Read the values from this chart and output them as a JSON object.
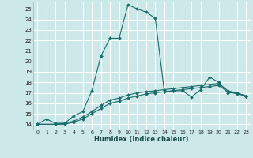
{
  "xlabel": "Humidex (Indice chaleur)",
  "bg_color": "#cce8e8",
  "grid_color": "#ffffff",
  "line_color": "#1a6b6b",
  "xlim": [
    -0.5,
    23.5
  ],
  "ylim": [
    13.5,
    25.7
  ],
  "xticks": [
    0,
    1,
    2,
    3,
    4,
    5,
    6,
    7,
    8,
    9,
    10,
    11,
    12,
    13,
    14,
    15,
    16,
    17,
    18,
    19,
    20,
    21,
    22,
    23
  ],
  "yticks": [
    14,
    15,
    16,
    17,
    18,
    19,
    20,
    21,
    22,
    23,
    24,
    25
  ],
  "series1_x": [
    0,
    1,
    2,
    3,
    4,
    5,
    6,
    7,
    8,
    9,
    10,
    11,
    12,
    13,
    14,
    15,
    16,
    17,
    18,
    19,
    20,
    21,
    22,
    23
  ],
  "series1_y": [
    14.0,
    14.5,
    14.1,
    14.1,
    14.8,
    15.2,
    17.2,
    20.5,
    22.2,
    22.2,
    25.4,
    25.0,
    24.7,
    24.1,
    17.1,
    17.2,
    17.2,
    16.6,
    17.3,
    18.5,
    18.0,
    17.0,
    17.0,
    16.7
  ],
  "series2_x": [
    0,
    2,
    3,
    4,
    5,
    6,
    7,
    8,
    9,
    10,
    11,
    12,
    13,
    14,
    15,
    16,
    17,
    18,
    19,
    20,
    21,
    22,
    23
  ],
  "series2_y": [
    14.0,
    14.0,
    14.0,
    14.2,
    14.5,
    15.0,
    15.5,
    16.0,
    16.2,
    16.5,
    16.7,
    16.9,
    17.0,
    17.1,
    17.2,
    17.3,
    17.4,
    17.5,
    17.6,
    17.7,
    17.1,
    16.9,
    16.7
  ],
  "series3_x": [
    0,
    2,
    3,
    4,
    5,
    6,
    7,
    8,
    9,
    10,
    11,
    12,
    13,
    14,
    15,
    16,
    17,
    18,
    19,
    20,
    21,
    22,
    23
  ],
  "series3_y": [
    14.0,
    14.0,
    14.1,
    14.3,
    14.7,
    15.2,
    15.8,
    16.3,
    16.5,
    16.8,
    17.0,
    17.1,
    17.2,
    17.3,
    17.4,
    17.5,
    17.6,
    17.7,
    17.8,
    17.9,
    17.2,
    17.0,
    16.7
  ]
}
